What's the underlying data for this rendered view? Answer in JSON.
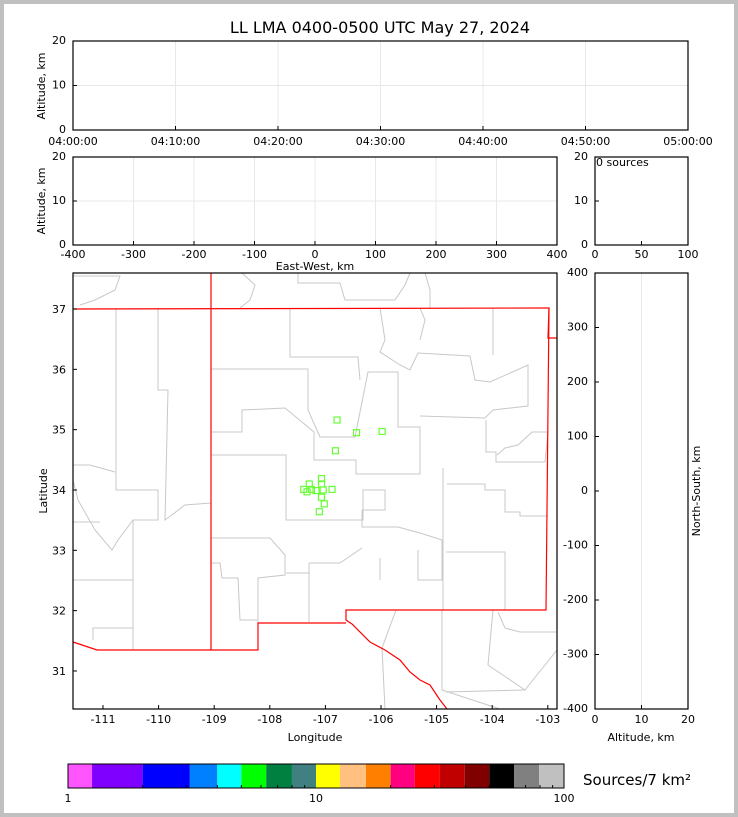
{
  "chart_data": [
    {
      "type": "scatter",
      "panel": "altitude-vs-time",
      "title": "LL LMA 0400-0500 UTC May 27, 2024",
      "ylabel": "Altitude, km",
      "xlabel": "",
      "xticks": [
        "04:00:00",
        "04:10:00",
        "04:20:00",
        "04:30:00",
        "04:40:00",
        "04:50:00",
        "05:00:00"
      ],
      "yticks": [
        0,
        10,
        20
      ],
      "ylim": [
        0,
        20
      ],
      "grid": true,
      "points": []
    },
    {
      "type": "scatter",
      "panel": "altitude-vs-east-west",
      "xlabel": "East-West, km",
      "ylabel": "Altitude, km",
      "xlim": [
        -400,
        400
      ],
      "xticks": [
        -400,
        -300,
        -200,
        -100,
        0,
        100,
        200,
        300,
        400
      ],
      "ylim": [
        0,
        20
      ],
      "yticks": [
        0,
        10,
        20
      ],
      "grid": true,
      "points": []
    },
    {
      "type": "bar",
      "panel": "altitude-histogram",
      "annotation": "0 sources",
      "xlim": [
        0,
        100
      ],
      "xticks": [
        0,
        50,
        100
      ],
      "ylim": [
        0,
        20
      ],
      "yticks": [
        0,
        10,
        20
      ],
      "values": []
    },
    {
      "type": "scatter",
      "panel": "plan-view-map",
      "xlabel": "Longitude",
      "ylabel": "Latitude",
      "xlim": [
        -111.54,
        -102.83
      ],
      "ylim": [
        30.37,
        37.6
      ],
      "xticks": [
        -111,
        -110,
        -109,
        -108,
        -107,
        -106,
        -105,
        -104,
        -103
      ],
      "yticks": [
        31,
        32,
        33,
        34,
        35,
        36,
        37
      ],
      "marker": "open-square",
      "marker_color": "#66ff33",
      "border_color": "#ff0000",
      "points": [
        {
          "lon": -106.79,
          "lat": 35.16
        },
        {
          "lon": -106.44,
          "lat": 34.95
        },
        {
          "lon": -105.98,
          "lat": 34.97
        },
        {
          "lon": -106.82,
          "lat": 34.65
        },
        {
          "lon": -107.07,
          "lat": 34.19
        },
        {
          "lon": -107.29,
          "lat": 34.1
        },
        {
          "lon": -107.07,
          "lat": 34.1
        },
        {
          "lon": -107.39,
          "lat": 34.01
        },
        {
          "lon": -107.33,
          "lat": 33.97
        },
        {
          "lon": -107.25,
          "lat": 34.01
        },
        {
          "lon": -107.17,
          "lat": 33.99
        },
        {
          "lon": -107.04,
          "lat": 34.0
        },
        {
          "lon": -106.88,
          "lat": 34.01
        },
        {
          "lon": -107.07,
          "lat": 33.88
        },
        {
          "lon": -107.02,
          "lat": 33.77
        },
        {
          "lon": -107.11,
          "lat": 33.64
        }
      ]
    },
    {
      "type": "scatter",
      "panel": "north-south-vs-altitude",
      "xlabel": "Altitude, km",
      "ylabel": "North-South, km",
      "xlim": [
        0,
        20
      ],
      "xticks": [
        0,
        10,
        20
      ],
      "ylim": [
        -400,
        400
      ],
      "yticks": [
        400,
        300,
        200,
        100,
        0,
        -100,
        -200,
        -300,
        -400
      ],
      "grid": true,
      "points": []
    }
  ],
  "colorbar": {
    "label": "Sources/7 km²",
    "tick_labels": [
      "1",
      "10",
      "100"
    ],
    "scale": "log",
    "colors": [
      "#ff55ff",
      "#8000ff",
      "#0000ff",
      "#0080ff",
      "#00ffff",
      "#00ff00",
      "#008040",
      "#408080",
      "#ffff00",
      "#ffc080",
      "#ff8000",
      "#ff0080",
      "#ff0000",
      "#c00000",
      "#800000",
      "#000000",
      "#808080",
      "#c0c0c0",
      "#ffffff"
    ]
  }
}
